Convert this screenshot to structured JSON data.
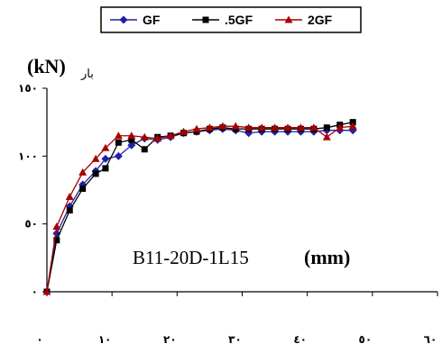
{
  "chart_data": {
    "type": "line",
    "title": "",
    "xlabel": "",
    "ylabel_unit": "(kN)",
    "ylabel_word": "بار",
    "annotation_code": "B11-20D-1L15",
    "annotation_unit": "(mm)",
    "xlim": [
      0,
      60
    ],
    "ylim": [
      0,
      150
    ],
    "x_ticks": [
      0,
      10,
      20,
      30,
      40,
      50,
      60
    ],
    "x_tick_labels": [
      "٠",
      "١٠",
      "٢٠",
      "٣٠",
      "٤٠",
      "٥٠",
      "٦٠"
    ],
    "y_ticks": [
      0,
      50,
      100,
      150
    ],
    "y_tick_labels": [
      "٠",
      "٥٠",
      "١٠٠",
      "١٥٠"
    ],
    "grid": false,
    "legend_position": "top-center",
    "series": [
      {
        "name": "GF",
        "color": "#1f1fa8",
        "marker": "diamond",
        "x": [
          0,
          1.5,
          3.5,
          5.5,
          7.5,
          9,
          11,
          13,
          15,
          17,
          19,
          21,
          23,
          25,
          27,
          29,
          31,
          33,
          35,
          37,
          39,
          41,
          43,
          45,
          47
        ],
        "y": [
          0,
          43,
          63,
          79,
          89,
          98,
          100,
          108,
          113,
          112,
          114,
          117,
          118,
          119,
          120,
          119,
          117,
          118,
          118,
          118,
          118,
          118,
          119,
          119,
          119
        ]
      },
      {
        "name": ".5GF",
        "color": "#000000",
        "marker": "square",
        "x": [
          0,
          1.5,
          3.5,
          5.5,
          7.5,
          9,
          11,
          13,
          15,
          17,
          19,
          21,
          23,
          25,
          27,
          29,
          31,
          33,
          35,
          37,
          39,
          41,
          43,
          45,
          47
        ],
        "y": [
          0,
          38,
          60,
          76,
          87,
          91,
          110,
          112,
          105,
          114,
          115,
          117,
          118,
          120,
          121,
          120,
          120,
          120,
          120,
          120,
          120,
          120,
          121,
          123,
          125
        ]
      },
      {
        "name": "2GF",
        "color": "#a80000",
        "marker": "triangle",
        "x": [
          0,
          1.5,
          3.5,
          5.5,
          7.5,
          9,
          11,
          13,
          15,
          17,
          19,
          21,
          23,
          25,
          27,
          29,
          31,
          33,
          35,
          37,
          39,
          41,
          43,
          45,
          47
        ],
        "y": [
          0,
          48,
          70,
          88,
          98,
          106,
          115,
          115,
          114,
          113,
          115,
          118,
          120,
          121,
          122,
          122,
          121,
          121,
          121,
          121,
          121,
          121,
          114,
          121,
          122
        ]
      }
    ]
  }
}
